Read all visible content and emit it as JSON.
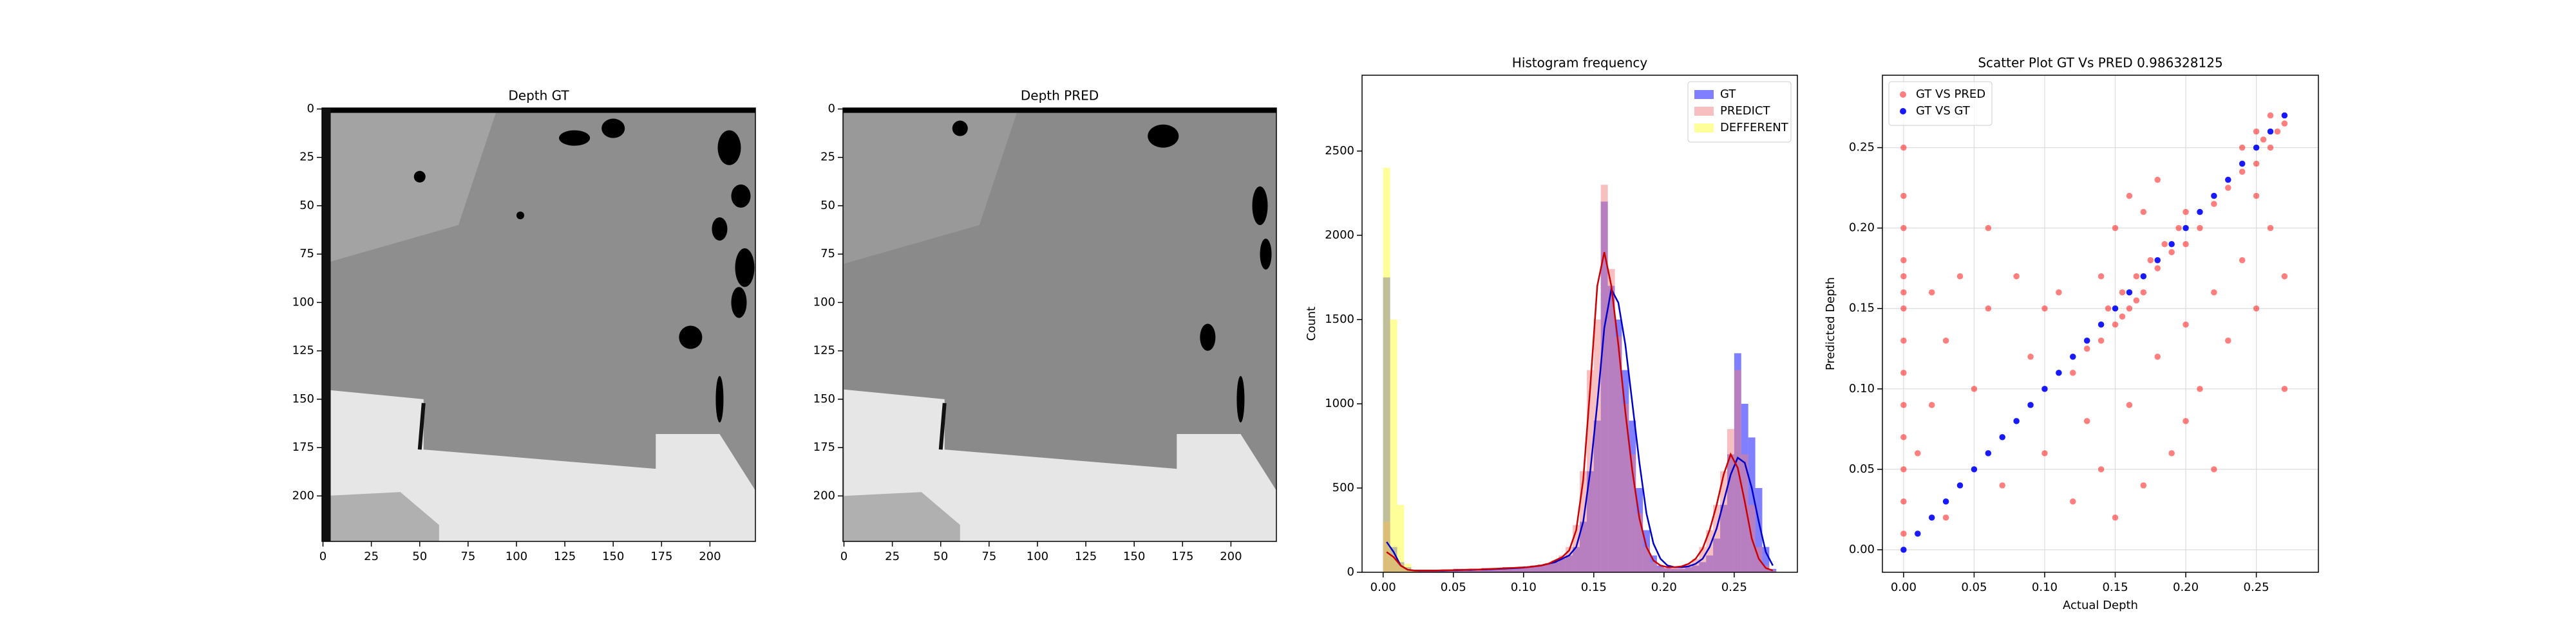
{
  "chart_data": [
    {
      "type": "image",
      "title": "Depth GT",
      "xlim": [
        -0.5,
        223.5
      ],
      "ylim": [
        223.5,
        -0.5
      ],
      "xticks": [
        0,
        25,
        50,
        75,
        100,
        125,
        150,
        175,
        200
      ],
      "yticks": [
        0,
        25,
        50,
        75,
        100,
        125,
        150,
        175,
        200
      ]
    },
    {
      "type": "image",
      "title": "Depth PRED",
      "xlim": [
        -0.5,
        223.5
      ],
      "ylim": [
        223.5,
        -0.5
      ],
      "xticks": [
        0,
        25,
        50,
        75,
        100,
        125,
        150,
        175,
        200
      ],
      "yticks": [
        0,
        25,
        50,
        75,
        100,
        125,
        150,
        175,
        200
      ]
    },
    {
      "type": "histogram",
      "title": "Histogram frequency",
      "ylabel": "Count",
      "xlim": [
        -0.015,
        0.295
      ],
      "ylim": [
        0,
        2950
      ],
      "xticks": [
        {
          "value": 0,
          "label": "0.00"
        },
        {
          "value": 0.05,
          "label": "0.05"
        },
        {
          "value": 0.1,
          "label": "0.10"
        },
        {
          "value": 0.15,
          "label": "0.15"
        },
        {
          "value": 0.2,
          "label": "0.20"
        },
        {
          "value": 0.25,
          "label": "0.25"
        }
      ],
      "yticks": [
        0,
        500,
        1000,
        1500,
        2000,
        2500
      ],
      "legend": "upper right",
      "bins": [
        0,
        0.005,
        0.01,
        0.015,
        0.02,
        0.025,
        0.03,
        0.035,
        0.04,
        0.045,
        0.05,
        0.055,
        0.06,
        0.065,
        0.07,
        0.075,
        0.08,
        0.085,
        0.09,
        0.095,
        0.1,
        0.105,
        0.11,
        0.115,
        0.12,
        0.125,
        0.13,
        0.135,
        0.14,
        0.145,
        0.15,
        0.155,
        0.16,
        0.165,
        0.17,
        0.175,
        0.18,
        0.185,
        0.19,
        0.195,
        0.2,
        0.205,
        0.21,
        0.215,
        0.22,
        0.225,
        0.23,
        0.235,
        0.24,
        0.245,
        0.25,
        0.255,
        0.26,
        0.265,
        0.27,
        0.275,
        0.28
      ],
      "kde_x": [
        0.0025,
        0.0075,
        0.0125,
        0.0175,
        0.0225,
        0.0275,
        0.0325,
        0.0375,
        0.0425,
        0.0475,
        0.0525,
        0.0575,
        0.0625,
        0.0675,
        0.0725,
        0.0775,
        0.0825,
        0.0875,
        0.0925,
        0.0975,
        0.1025,
        0.1075,
        0.1125,
        0.1175,
        0.1225,
        0.1275,
        0.1325,
        0.1375,
        0.1425,
        0.1475,
        0.1525,
        0.1575,
        0.1625,
        0.1675,
        0.1725,
        0.1775,
        0.1825,
        0.1875,
        0.1925,
        0.1975,
        0.2025,
        0.2075,
        0.2125,
        0.2175,
        0.2225,
        0.2275,
        0.2325,
        0.2375,
        0.2425,
        0.2475,
        0.2525,
        0.2575,
        0.2625,
        0.2675,
        0.2725,
        0.2775
      ],
      "series": [
        {
          "name": "GT",
          "color": "#0000ff",
          "line_color": "#0000cc",
          "values": [
            1750,
            150,
            60,
            30,
            15,
            15,
            15,
            15,
            15,
            15,
            20,
            20,
            20,
            20,
            25,
            25,
            25,
            30,
            30,
            30,
            35,
            40,
            45,
            50,
            60,
            80,
            100,
            150,
            300,
            600,
            900,
            2200,
            1700,
            1500,
            1200,
            900,
            500,
            250,
            100,
            40,
            25,
            20,
            20,
            30,
            40,
            60,
            100,
            200,
            400,
            700,
            1300,
            1000,
            800,
            500,
            150,
            20
          ],
          "kde": [
            180,
            120,
            40,
            15,
            10,
            10,
            10,
            10,
            10,
            12,
            12,
            14,
            14,
            16,
            16,
            18,
            20,
            22,
            24,
            26,
            30,
            35,
            40,
            50,
            60,
            80,
            100,
            150,
            300,
            600,
            1000,
            1450,
            1680,
            1600,
            1350,
            1000,
            650,
            350,
            170,
            80,
            40,
            30,
            30,
            35,
            50,
            80,
            150,
            260,
            420,
            580,
            680,
            650,
            500,
            300,
            120,
            40
          ]
        },
        {
          "name": "PREDICT",
          "color": "#f08080",
          "line_color": "#cc0000",
          "values": [
            300,
            100,
            40,
            20,
            15,
            15,
            15,
            15,
            15,
            15,
            20,
            20,
            20,
            20,
            25,
            25,
            25,
            30,
            30,
            30,
            35,
            40,
            45,
            55,
            70,
            100,
            150,
            280,
            600,
            1200,
            1500,
            2300,
            1800,
            1400,
            1000,
            700,
            350,
            150,
            60,
            30,
            25,
            25,
            30,
            50,
            80,
            150,
            250,
            400,
            600,
            850,
            1200,
            700,
            400,
            150,
            40,
            10
          ],
          "kde": [
            120,
            90,
            40,
            15,
            10,
            10,
            10,
            10,
            12,
            12,
            14,
            14,
            16,
            16,
            18,
            20,
            22,
            24,
            26,
            28,
            30,
            35,
            40,
            50,
            70,
            90,
            130,
            250,
            550,
            1100,
            1700,
            1900,
            1700,
            1350,
            950,
            600,
            320,
            150,
            70,
            40,
            30,
            30,
            35,
            50,
            80,
            140,
            250,
            400,
            580,
            700,
            620,
            420,
            200,
            80,
            25,
            10
          ]
        },
        {
          "name": "DEFFERENT",
          "color": "#ffff33",
          "values": [
            2400,
            1500,
            400,
            50,
            10,
            0,
            0,
            0,
            0,
            0,
            0,
            0,
            0,
            0,
            0,
            0,
            0,
            0,
            0,
            0,
            0,
            0,
            0,
            0,
            0,
            0,
            0,
            0,
            0,
            0,
            0,
            0,
            0,
            0,
            0,
            0,
            0,
            0,
            0,
            0,
            0,
            0,
            0,
            0,
            0,
            0,
            0,
            0,
            0,
            0,
            0,
            0,
            0,
            0,
            0,
            0
          ]
        }
      ]
    },
    {
      "type": "scatter",
      "title": "Scatter Plot GT Vs PRED 0.986328125",
      "xlabel": "Actual Depth",
      "ylabel": "Predicted Depth",
      "xlim": [
        -0.015,
        0.294
      ],
      "ylim": [
        -0.014,
        0.295
      ],
      "grid": true,
      "legend": "upper left",
      "xticks": [
        {
          "value": 0,
          "label": "0.00"
        },
        {
          "value": 0.05,
          "label": "0.05"
        },
        {
          "value": 0.1,
          "label": "0.10"
        },
        {
          "value": 0.15,
          "label": "0.15"
        },
        {
          "value": 0.2,
          "label": "0.20"
        },
        {
          "value": 0.25,
          "label": "0.25"
        }
      ],
      "yticks": [
        {
          "value": 0,
          "label": "0.00"
        },
        {
          "value": 0.05,
          "label": "0.05"
        },
        {
          "value": 0.1,
          "label": "0.10"
        },
        {
          "value": 0.15,
          "label": "0.15"
        },
        {
          "value": 0.2,
          "label": "0.20"
        },
        {
          "value": 0.25,
          "label": "0.25"
        }
      ],
      "series": [
        {
          "name": "GT VS PRED",
          "color": "#ff0000",
          "x": [
            0,
            0,
            0,
            0,
            0,
            0,
            0,
            0,
            0,
            0,
            0,
            0,
            0,
            0,
            0.12,
            0.13,
            0.14,
            0.145,
            0.15,
            0.155,
            0.16,
            0.165,
            0.17,
            0.175,
            0.18,
            0.185,
            0.19,
            0.195,
            0.2,
            0.2,
            0.21,
            0.22,
            0.23,
            0.24,
            0.25,
            0.255,
            0.26,
            0.265,
            0.27,
            0.25,
            0.26,
            0.24,
            0.155,
            0.165,
            0.02,
            0.03,
            0.04,
            0.05,
            0.06,
            0.07,
            0.08,
            0.09,
            0.1,
            0.11,
            0.12,
            0.13,
            0.14,
            0.15,
            0.16,
            0.17,
            0.18,
            0.19,
            0.2,
            0.21,
            0.22,
            0.23,
            0.24,
            0.25,
            0.26,
            0.27,
            0.15,
            0.16,
            0.17,
            0.18,
            0.02,
            0.03,
            0.01,
            0.06,
            0.1,
            0.14,
            0.2,
            0.22,
            0.25,
            0.27
          ],
          "y": [
            0.01,
            0.03,
            0.05,
            0.07,
            0.09,
            0.11,
            0.13,
            0.15,
            0.16,
            0.17,
            0.18,
            0.2,
            0.22,
            0.25,
            0.11,
            0.125,
            0.13,
            0.15,
            0.14,
            0.16,
            0.15,
            0.17,
            0.16,
            0.18,
            0.175,
            0.19,
            0.185,
            0.2,
            0.19,
            0.21,
            0.2,
            0.215,
            0.225,
            0.235,
            0.24,
            0.255,
            0.25,
            0.26,
            0.265,
            0.26,
            0.27,
            0.25,
            0.145,
            0.155,
            0.16,
            0.02,
            0.17,
            0.1,
            0.15,
            0.04,
            0.17,
            0.12,
            0.06,
            0.16,
            0.03,
            0.08,
            0.05,
            0.02,
            0.09,
            0.04,
            0.12,
            0.06,
            0.14,
            0.1,
            0.16,
            0.13,
            0.18,
            0.15,
            0.2,
            0.17,
            0.2,
            0.22,
            0.21,
            0.23,
            0.09,
            0.13,
            0.06,
            0.2,
            0.15,
            0.17,
            0.08,
            0.05,
            0.22,
            0.1
          ]
        },
        {
          "name": "GT VS GT",
          "color": "#0000ff",
          "x": [
            0,
            0.01,
            0.02,
            0.03,
            0.04,
            0.05,
            0.06,
            0.07,
            0.08,
            0.09,
            0.1,
            0.11,
            0.12,
            0.13,
            0.14,
            0.15,
            0.16,
            0.17,
            0.18,
            0.19,
            0.2,
            0.21,
            0.22,
            0.23,
            0.24,
            0.25,
            0.26,
            0.27
          ],
          "y": [
            0,
            0.01,
            0.02,
            0.03,
            0.04,
            0.05,
            0.06,
            0.07,
            0.08,
            0.09,
            0.1,
            0.11,
            0.12,
            0.13,
            0.14,
            0.15,
            0.16,
            0.17,
            0.18,
            0.19,
            0.2,
            0.21,
            0.22,
            0.23,
            0.24,
            0.25,
            0.26,
            0.27
          ]
        }
      ]
    }
  ]
}
